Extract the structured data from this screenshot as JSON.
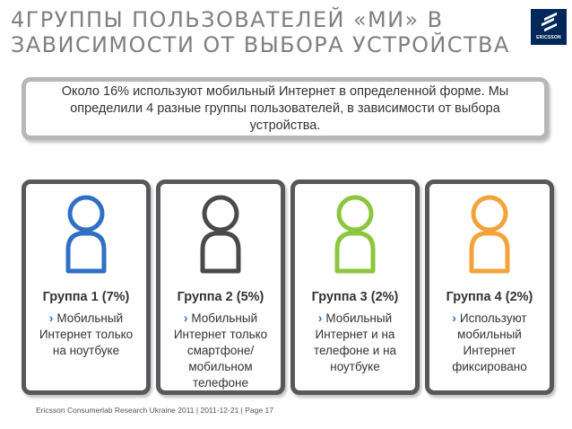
{
  "title": {
    "line1": "4ГРУППЫ ПОЛЬЗОВАТЕЛЕЙ «МИ» В",
    "line2": "ЗАВИСИМОСТИ ОТ ВЫБОРА УСТРОЙСТВА"
  },
  "logo": {
    "text": "ERICSSON"
  },
  "intro": {
    "text": "Около 16% используют мобильный Интернет в определенной форме. Мы определили 4 разные группы пользователей, в зависимости от выбора устройства."
  },
  "groups": [
    {
      "name": "Группа 1 (7%)",
      "bullet": "›",
      "description": "Мобильный Интернет только на ноутбуке",
      "color": "#2f6fc6"
    },
    {
      "name": "Группа 2 (5%)",
      "bullet": "›",
      "description": "Мобильный Интернет только смартфоне/ мобильном телефоне",
      "color": "#4a4a4a"
    },
    {
      "name": "Группа 3 (2%)",
      "bullet": "›",
      "description": "Мобильный Интернет и на телефоне и на ноутбуке",
      "color": "#8cc63f"
    },
    {
      "name": "Группа 4 (2%)",
      "bullet": "›",
      "description": "Используют мобильный Интернет фиксировано",
      "color": "#f2a33a"
    }
  ],
  "footer": {
    "text": "Ericsson Consumerlab Research Ukraine 2011  |  2011-12-21  |  Page 17"
  }
}
